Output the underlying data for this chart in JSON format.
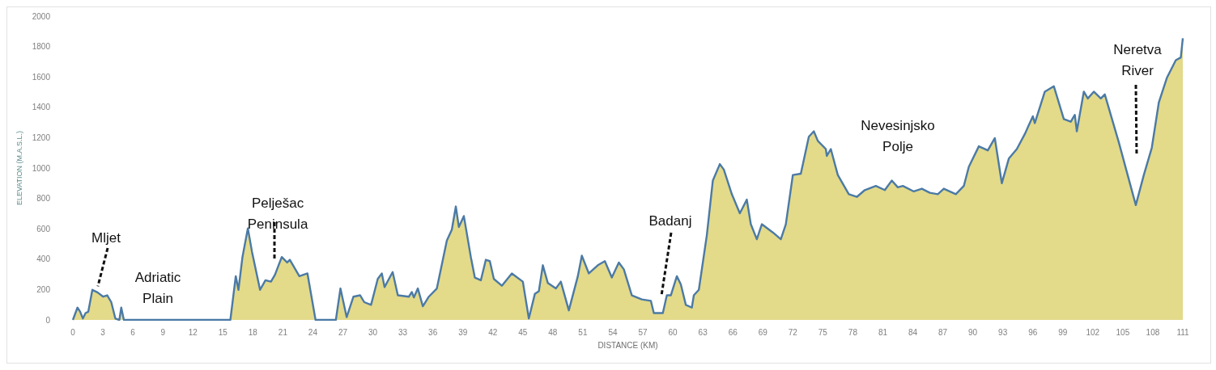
{
  "chart_data": {
    "type": "area",
    "xlabel": "DISTANCE (KM)",
    "ylabel": "ELEVATION (M.A.S.L.)",
    "xlim": [
      0,
      111
    ],
    "xticks": [
      0,
      3,
      6,
      9,
      12,
      15,
      18,
      21,
      24,
      27,
      30,
      33,
      36,
      39,
      42,
      45,
      48,
      51,
      54,
      57,
      60,
      63,
      66,
      69,
      72,
      75,
      78,
      81,
      84,
      87,
      90,
      93,
      96,
      99,
      102,
      105,
      108,
      111
    ],
    "ylim": [
      0,
      2000
    ],
    "yticks": [
      0,
      200,
      400,
      600,
      800,
      1000,
      1200,
      1400,
      1600,
      1800,
      2000
    ],
    "grid": false,
    "marker": "none",
    "annotations": [
      {
        "text": "Mljet",
        "x": 2.5,
        "y": 200
      },
      "Adriatic Plain",
      "Pelješac Peninsula",
      "Badanj",
      "Nevesinjsko Polje",
      "Neretva River"
    ],
    "series": [
      {
        "color": "#e3da8a",
        "x": [
          0,
          0.46,
          0.73,
          1.0,
          1.27,
          1.54,
          1.95,
          2.49,
          3.03,
          3.44,
          3.84,
          4.25,
          4.65,
          4.84,
          5.1,
          15.75,
          16.29,
          16.56,
          16.96,
          17.5,
          17.91,
          18.72,
          19.26,
          19.81,
          20.21,
          20.89,
          21.43,
          21.7,
          22.65,
          23.46,
          24.27,
          26.3,
          26.76,
          27.38,
          28.06,
          28.73,
          29.14,
          29.82,
          30.49,
          30.9,
          31.17,
          31.98,
          32.5,
          33.6,
          33.9,
          34.1,
          34.5,
          35.0,
          35.6,
          36.4,
          37.4,
          37.9,
          38.3,
          38.6,
          39.1,
          39.8,
          40.2,
          40.8,
          41.3,
          41.7,
          42.1,
          42.9,
          43.9,
          45.0,
          45.6,
          46.2,
          46.6,
          47.0,
          47.5,
          48.3,
          48.8,
          49.6,
          50.5,
          50.9,
          51.6,
          52.5,
          53.2,
          53.9,
          54.6,
          55.1,
          55.9,
          56.9,
          57.8,
          58.1,
          59.0,
          59.4,
          59.8,
          60.4,
          60.8,
          61.3,
          61.9,
          62.1,
          62.6,
          63.4,
          64.0,
          64.7,
          65.1,
          65.9,
          66.7,
          67.4,
          67.8,
          68.4,
          68.9,
          70.0,
          70.8,
          71.3,
          72.0,
          72.8,
          73.6,
          74.1,
          74.5,
          75.3,
          75.4,
          75.8,
          76.5,
          77.6,
          78.4,
          79.2,
          80.3,
          81.2,
          81.9,
          82.5,
          83.0,
          84.1,
          84.9,
          85.7,
          86.5,
          87.1,
          88.3,
          89.1,
          89.6,
          90.6,
          91.5,
          92.2,
          92.9,
          93.6,
          94.4,
          95.2,
          96.0,
          96.2,
          97.2,
          98.1,
          99.1,
          99.8,
          100.2,
          100.4,
          101.1,
          101.5,
          102.1,
          102.8,
          103.2,
          104.6,
          106.3,
          107.1,
          107.9,
          108.6,
          109.4,
          110.3,
          110.8,
          111.0
        ],
        "values": [
          0,
          81,
          54,
          9,
          45,
          54,
          198,
          180,
          153,
          162,
          117,
          9,
          0,
          81,
          0,
          0,
          288,
          198,
          414,
          603,
          450,
          198,
          261,
          252,
          297,
          414,
          378,
          396,
          288,
          306,
          0,
          0,
          207,
          18,
          153,
          162,
          117,
          99,
          270,
          306,
          216,
          315,
          162,
          153,
          184,
          148,
          207,
          90,
          153,
          207,
          522,
          594,
          747,
          612,
          684,
          414,
          279,
          261,
          396,
          387,
          270,
          225,
          306,
          252,
          9,
          171,
          189,
          360,
          243,
          207,
          252,
          63,
          288,
          423,
          306,
          360,
          387,
          279,
          378,
          333,
          162,
          135,
          126,
          45,
          45,
          162,
          162,
          288,
          234,
          99,
          81,
          162,
          198,
          558,
          918,
          1026,
          990,
          828,
          702,
          792,
          630,
          531,
          630,
          576,
          531,
          630,
          954,
          963,
          1206,
          1242,
          1179,
          1125,
          1080,
          1125,
          954,
          828,
          810,
          855,
          882,
          855,
          918,
          873,
          882,
          846,
          864,
          837,
          828,
          864,
          828,
          882,
          1008,
          1143,
          1116,
          1197,
          900,
          1062,
          1125,
          1224,
          1341,
          1296,
          1503,
          1539,
          1323,
          1305,
          1350,
          1242,
          1503,
          1458,
          1503,
          1458,
          1485,
          1170,
          756,
          954,
          1134,
          1431,
          1593,
          1710,
          1728,
          1854
        ]
      }
    ]
  }
}
